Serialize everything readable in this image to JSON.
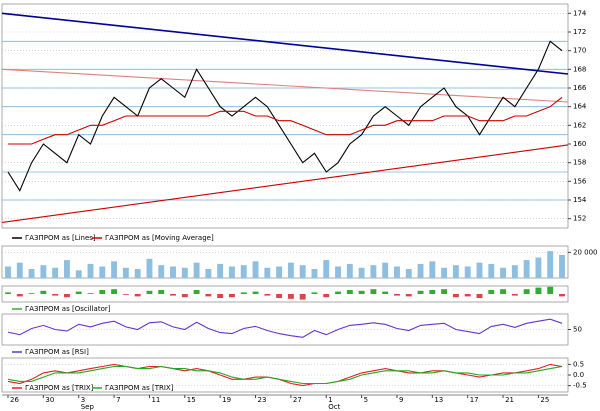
{
  "chart_data": [
    {
      "type": "line",
      "series": [
        {
          "name": "ГАЗПРОМ as [Lines]",
          "color": "#000000",
          "values": [
            157,
            155,
            158,
            160,
            159,
            158,
            161,
            160,
            163,
            165,
            164,
            163,
            166,
            167,
            166,
            165,
            168,
            166,
            164,
            163,
            164,
            165,
            164,
            162,
            160,
            158,
            159,
            157,
            158,
            160,
            161,
            163,
            164,
            163,
            162,
            164,
            165,
            166,
            164,
            163,
            161,
            163,
            165,
            164,
            166,
            168,
            171,
            170
          ]
        },
        {
          "name": "ГАЗПРОМ as [Moving Average]",
          "color": "#cc0000",
          "values": [
            160,
            160,
            160,
            160.5,
            161,
            161,
            161.5,
            162,
            162,
            162.5,
            163,
            163,
            163,
            163,
            163,
            163,
            163,
            163,
            163.5,
            163.5,
            163.5,
            163,
            163,
            162.5,
            162.5,
            162,
            161.5,
            161,
            161,
            161,
            161.5,
            162,
            162,
            162.5,
            162.5,
            162.5,
            162.5,
            163,
            163,
            163,
            162.5,
            162.5,
            162.5,
            163,
            163,
            163.5,
            164,
            165
          ]
        }
      ],
      "trendlines": [
        {
          "color": "#000099",
          "start": 174,
          "end": 167.5
        },
        {
          "color": "#cc0000",
          "start": 151.6,
          "end": 159.9
        },
        {
          "color": "#e08080",
          "start": 168,
          "end": 164.5
        }
      ],
      "levels": {
        "color": "#7fb2d8",
        "values": [
          171,
          168,
          166,
          164,
          161,
          157,
          154
        ]
      },
      "ylim": [
        151,
        175
      ],
      "yticks": [
        152,
        154,
        156,
        158,
        160,
        162,
        164,
        166,
        168,
        170,
        172,
        174
      ],
      "categories": [
        "26",
        null,
        null,
        "30",
        null,
        null,
        "3",
        null,
        null,
        "7",
        null,
        null,
        "11",
        null,
        null,
        "15",
        null,
        null,
        "19",
        null,
        null,
        "23",
        null,
        null,
        "27",
        null,
        null,
        "1",
        null,
        null,
        "5",
        null,
        null,
        "9",
        null,
        null,
        "13",
        null,
        null,
        "17",
        null,
        null,
        "21",
        null,
        null,
        "25",
        null,
        null
      ],
      "months": [
        {
          "label": "Sep",
          "at": 6
        },
        {
          "label": "Oct",
          "at": 27
        }
      ]
    },
    {
      "type": "bar",
      "color": "#8fbfe0",
      "values": [
        9000000,
        12000000,
        7000000,
        10000000,
        8000000,
        14000000,
        6000000,
        11000000,
        9000000,
        13000000,
        8000000,
        7000000,
        15000000,
        10000000,
        9000000,
        8000000,
        12000000,
        7000000,
        11000000,
        9000000,
        10000000,
        13000000,
        8000000,
        9000000,
        12000000,
        10000000,
        7000000,
        14000000,
        9000000,
        11000000,
        8000000,
        10000000,
        12000000,
        9000000,
        7000000,
        11000000,
        13000000,
        8000000,
        10000000,
        9000000,
        12000000,
        11000000,
        8000000,
        10000000,
        14000000,
        16000000,
        21000000,
        18000000
      ],
      "ylim": [
        0,
        25000000
      ],
      "yticks": [
        {
          "value": 20000000,
          "label": "20 000 000"
        }
      ]
    },
    {
      "type": "bar",
      "name": "ГАЗПРОМ as [Oscillator]",
      "colors": {
        "positive": "#33aa33",
        "negative": "#dd4444"
      },
      "values": [
        0.2,
        -0.3,
        0.1,
        0.4,
        -0.2,
        -0.4,
        0.3,
        0.1,
        0.5,
        0.6,
        -0.1,
        -0.3,
        0.4,
        0.5,
        -0.2,
        -0.4,
        0.5,
        -0.3,
        -0.5,
        -0.4,
        0.2,
        0.3,
        -0.2,
        -0.5,
        -0.6,
        -0.7,
        0.2,
        -0.4,
        0.3,
        0.5,
        0.4,
        0.6,
        0.3,
        -0.2,
        -0.3,
        0.4,
        0.5,
        0.6,
        -0.4,
        -0.3,
        -0.5,
        0.5,
        0.6,
        -0.2,
        0.6,
        0.8,
        0.9,
        -0.3
      ],
      "ylim": [
        -1,
        1
      ],
      "yticks": []
    },
    {
      "type": "line",
      "series": [
        {
          "name": "ГАЗПРОМ as [RSI]",
          "color": "#6633cc",
          "values": [
            45,
            40,
            52,
            58,
            50,
            47,
            60,
            55,
            62,
            66,
            55,
            50,
            63,
            65,
            55,
            50,
            64,
            52,
            44,
            42,
            52,
            56,
            48,
            42,
            38,
            35,
            48,
            40,
            50,
            58,
            60,
            63,
            60,
            52,
            48,
            58,
            60,
            62,
            50,
            46,
            42,
            56,
            60,
            54,
            62,
            66,
            70,
            62
          ]
        }
      ],
      "ylim": [
        20,
        80
      ],
      "yticks": [
        50
      ]
    },
    {
      "type": "line",
      "series": [
        {
          "name": "ГАЗПРОМ as [TRIX]",
          "color": "#dd2222",
          "values": [
            -0.3,
            -0.4,
            -0.2,
            0.1,
            0.2,
            0.1,
            0.2,
            0.3,
            0.4,
            0.5,
            0.4,
            0.3,
            0.4,
            0.4,
            0.3,
            0.2,
            0.3,
            0.2,
            0,
            -0.2,
            -0.2,
            -0.1,
            -0.1,
            -0.2,
            -0.4,
            -0.5,
            -0.4,
            -0.4,
            -0.3,
            -0.1,
            0.1,
            0.2,
            0.3,
            0.2,
            0.1,
            0.1,
            0.2,
            0.2,
            0.1,
            0,
            -0.1,
            0,
            0.1,
            0.1,
            0.2,
            0.3,
            0.5,
            0.4
          ]
        },
        {
          "name": "ГАЗПРОМ as [TRIX]",
          "color": "#22aa22",
          "values": [
            -0.2,
            -0.3,
            -0.3,
            -0.1,
            0.1,
            0.1,
            0.1,
            0.2,
            0.3,
            0.4,
            0.4,
            0.3,
            0.3,
            0.4,
            0.3,
            0.3,
            0.2,
            0.2,
            0.1,
            -0.1,
            -0.2,
            -0.2,
            -0.1,
            -0.2,
            -0.3,
            -0.4,
            -0.4,
            -0.4,
            -0.3,
            -0.2,
            0,
            0.1,
            0.2,
            0.2,
            0.2,
            0.1,
            0.1,
            0.2,
            0.1,
            0.1,
            0,
            0,
            0,
            0.1,
            0.1,
            0.2,
            0.3,
            0.4
          ]
        }
      ],
      "ylim": [
        -0.8,
        0.8
      ],
      "yticks": [
        0.5,
        {
          "value": 0,
          "label": "0.0"
        },
        -0.5
      ]
    }
  ]
}
